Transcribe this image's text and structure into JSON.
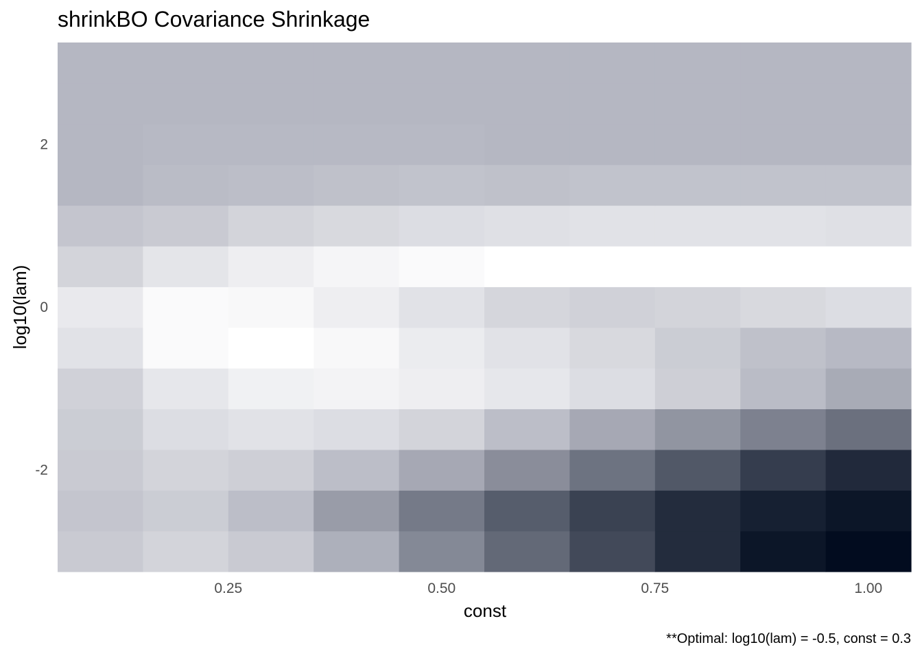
{
  "chart_data": {
    "type": "heatmap",
    "title": "shrinkBO Covariance Shrinkage",
    "xlabel": "const",
    "ylabel": "log10(lam)",
    "caption": "**Optimal: log10(lam) = -0.5, const = 0.3",
    "xlim": [
      0.05,
      1.05
    ],
    "ylim": [
      -3.25,
      3.25
    ],
    "x_ticks": [
      0.25,
      0.5,
      0.75,
      1.0
    ],
    "x_tick_labels": [
      "0.25",
      "0.50",
      "0.75",
      "1.00"
    ],
    "y_ticks": [
      -2,
      0,
      2
    ],
    "y_tick_labels": [
      "-2",
      "0",
      "2"
    ],
    "x": [
      0.1,
      0.2,
      0.3,
      0.4,
      0.5,
      0.6,
      0.7,
      0.8,
      0.9,
      1.0
    ],
    "y": [
      -3,
      -2.5,
      -2,
      -1.5,
      -1,
      -0.5,
      0,
      0.5,
      1,
      1.5,
      2,
      2.5,
      3
    ],
    "values": [
      [
        0.22,
        0.18,
        0.22,
        0.33,
        0.49,
        0.62,
        0.75,
        0.87,
        0.96,
        1.0
      ],
      [
        0.24,
        0.21,
        0.27,
        0.41,
        0.55,
        0.67,
        0.78,
        0.87,
        0.92,
        0.96
      ],
      [
        0.22,
        0.18,
        0.2,
        0.27,
        0.36,
        0.47,
        0.58,
        0.69,
        0.8,
        0.88
      ],
      [
        0.21,
        0.14,
        0.12,
        0.14,
        0.18,
        0.27,
        0.36,
        0.44,
        0.52,
        0.59
      ],
      [
        0.19,
        0.1,
        0.06,
        0.05,
        0.07,
        0.1,
        0.14,
        0.2,
        0.28,
        0.35
      ],
      [
        0.12,
        0.02,
        0.0,
        0.03,
        0.08,
        0.12,
        0.16,
        0.21,
        0.26,
        0.29
      ],
      [
        0.09,
        0.02,
        0.03,
        0.07,
        0.12,
        0.17,
        0.19,
        0.18,
        0.16,
        0.14
      ],
      [
        0.18,
        0.11,
        0.07,
        0.04,
        0.02,
        0.0,
        0.0,
        0.0,
        0.0,
        0.0
      ],
      [
        0.24,
        0.22,
        0.18,
        0.16,
        0.14,
        0.13,
        0.12,
        0.12,
        0.12,
        0.13
      ],
      [
        0.3,
        0.28,
        0.27,
        0.26,
        0.25,
        0.26,
        0.25,
        0.25,
        0.25,
        0.25
      ],
      [
        0.3,
        0.29,
        0.29,
        0.29,
        0.29,
        0.3,
        0.3,
        0.3,
        0.3,
        0.3
      ],
      [
        0.3,
        0.3,
        0.3,
        0.3,
        0.3,
        0.3,
        0.3,
        0.3,
        0.3,
        0.3
      ],
      [
        0.3,
        0.3,
        0.3,
        0.3,
        0.3,
        0.3,
        0.3,
        0.3,
        0.3,
        0.3
      ]
    ],
    "color_scale": {
      "low": "#ffffff",
      "high": "#020c1f",
      "mid_tint": "#b5b7c2"
    },
    "grid": true,
    "legend": "none"
  }
}
